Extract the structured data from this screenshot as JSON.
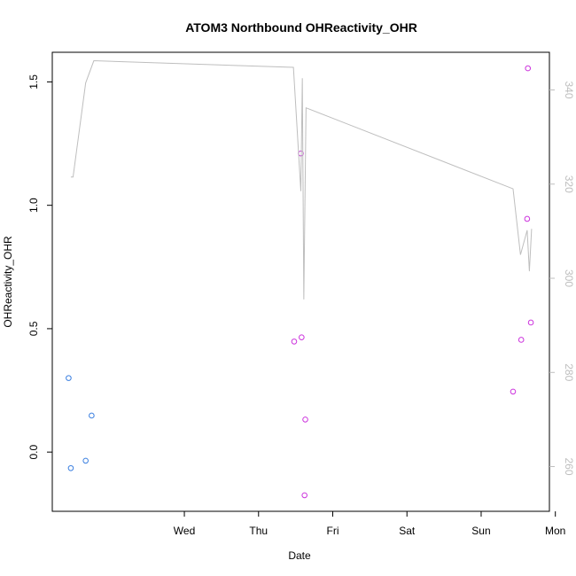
{
  "chart_data": {
    "type": "scatter",
    "title": "ATOM3 Northbound OHReactivity_OHR",
    "xlabel": "Date",
    "ylabel": "OHReactivity_OHR",
    "x_ticks": [
      "Wed",
      "Thu",
      "Fri",
      "Sat",
      "Sun",
      "Mon"
    ],
    "x_tick_days": [
      1,
      2,
      3,
      4,
      5,
      6
    ],
    "xlim_days": [
      -0.78,
      5.92
    ],
    "y_left": {
      "ticks": [
        "0.0",
        "0.5",
        "1.0",
        "1.5"
      ],
      "tick_values": [
        0,
        0.5,
        1,
        1.5
      ],
      "ylim": [
        -0.24,
        1.62
      ]
    },
    "y_right": {
      "ticks": [
        "260",
        "280",
        "300",
        "320",
        "340"
      ],
      "tick_values": [
        260,
        280,
        300,
        320,
        340
      ],
      "ylim": [
        250.5,
        348.0
      ],
      "color": "#bebebe"
    },
    "grid": false,
    "series": [
      {
        "marker": "circle-open",
        "color": "#3a7fe0",
        "points": [
          {
            "x": -0.56,
            "y": 0.3
          },
          {
            "x": -0.53,
            "y": -0.065
          },
          {
            "x": -0.33,
            "y": -0.035
          },
          {
            "x": -0.25,
            "y": 0.148
          }
        ]
      },
      {
        "marker": "circle-open",
        "color": "#cc33dd",
        "points": [
          {
            "x": 2.48,
            "y": 0.448
          },
          {
            "x": 2.57,
            "y": 1.21
          },
          {
            "x": 2.58,
            "y": 0.465
          },
          {
            "x": 2.62,
            "y": -0.175
          },
          {
            "x": 2.63,
            "y": 0.132
          },
          {
            "x": 5.43,
            "y": 0.245
          },
          {
            "x": 5.54,
            "y": 0.455
          },
          {
            "x": 5.62,
            "y": 0.945
          },
          {
            "x": 5.63,
            "y": 1.555
          },
          {
            "x": 5.67,
            "y": 0.525
          }
        ]
      },
      {
        "type": "line",
        "axis": "right",
        "color": "#bebebe",
        "points": [
          {
            "x": -0.53,
            "y": 321.5
          },
          {
            "x": -0.5,
            "y": 321.5
          },
          {
            "x": -0.33,
            "y": 341.5
          },
          {
            "x": -0.22,
            "y": 346.2
          },
          {
            "x": 2.47,
            "y": 344.8
          },
          {
            "x": 2.57,
            "y": 318.5
          },
          {
            "x": 2.59,
            "y": 342.5
          },
          {
            "x": 2.61,
            "y": 295.5
          },
          {
            "x": 2.64,
            "y": 336.2
          },
          {
            "x": 5.43,
            "y": 319.0
          },
          {
            "x": 5.53,
            "y": 305.0
          },
          {
            "x": 5.62,
            "y": 310.2
          },
          {
            "x": 5.65,
            "y": 301.5
          },
          {
            "x": 5.68,
            "y": 310.5
          }
        ]
      }
    ]
  }
}
